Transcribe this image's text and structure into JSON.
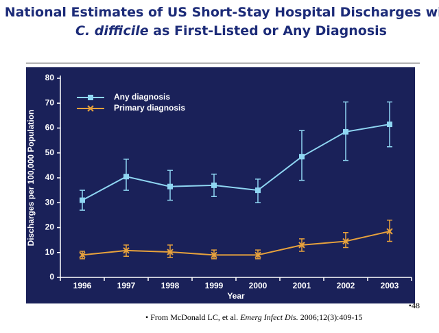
{
  "chart_data": {
    "type": "line",
    "title": [
      "National Estimates of US Short-Stay Hospital Discharges with ",
      "C. difficile",
      " as First-Listed or Any Diagnosis"
    ],
    "x_label": "Year",
    "y_label": "Discharges per 100,000 Population",
    "categories": [
      "1996",
      "1997",
      "1998",
      "1999",
      "2000",
      "2001",
      "2002",
      "2003"
    ],
    "series": [
      {
        "name": "Any diagnosis",
        "color": "#8fd6f2",
        "marker": "square",
        "values": [
          31,
          40.5,
          36.5,
          37,
          35,
          48.5,
          58.5,
          61.5
        ],
        "lower": [
          27,
          35,
          31,
          32.5,
          30,
          39,
          47,
          52.5
        ],
        "upper": [
          35,
          47.5,
          43,
          41.5,
          39.5,
          59,
          70.5,
          70.5
        ]
      },
      {
        "name": "Primary diagnosis",
        "color": "#e8a23c",
        "marker": "x",
        "values": [
          9,
          10.8,
          10.2,
          9,
          9,
          13,
          14.5,
          18.5
        ],
        "lower": [
          7.5,
          8.5,
          8,
          7.5,
          7.5,
          10.5,
          12,
          14.5
        ],
        "upper": [
          10.5,
          13,
          13,
          11,
          11,
          15.5,
          18,
          23
        ]
      }
    ],
    "ylim": [
      0,
      80
    ],
    "yticks": [
      0,
      10,
      20,
      30,
      40,
      50,
      60,
      70,
      80
    ],
    "legend": "upper left"
  },
  "footer": {
    "slide_number": "•48",
    "citation": [
      "• From McDonald LC, et al. ",
      "Emerg Infect Dis.",
      " 2006;12(3):409-15"
    ]
  }
}
